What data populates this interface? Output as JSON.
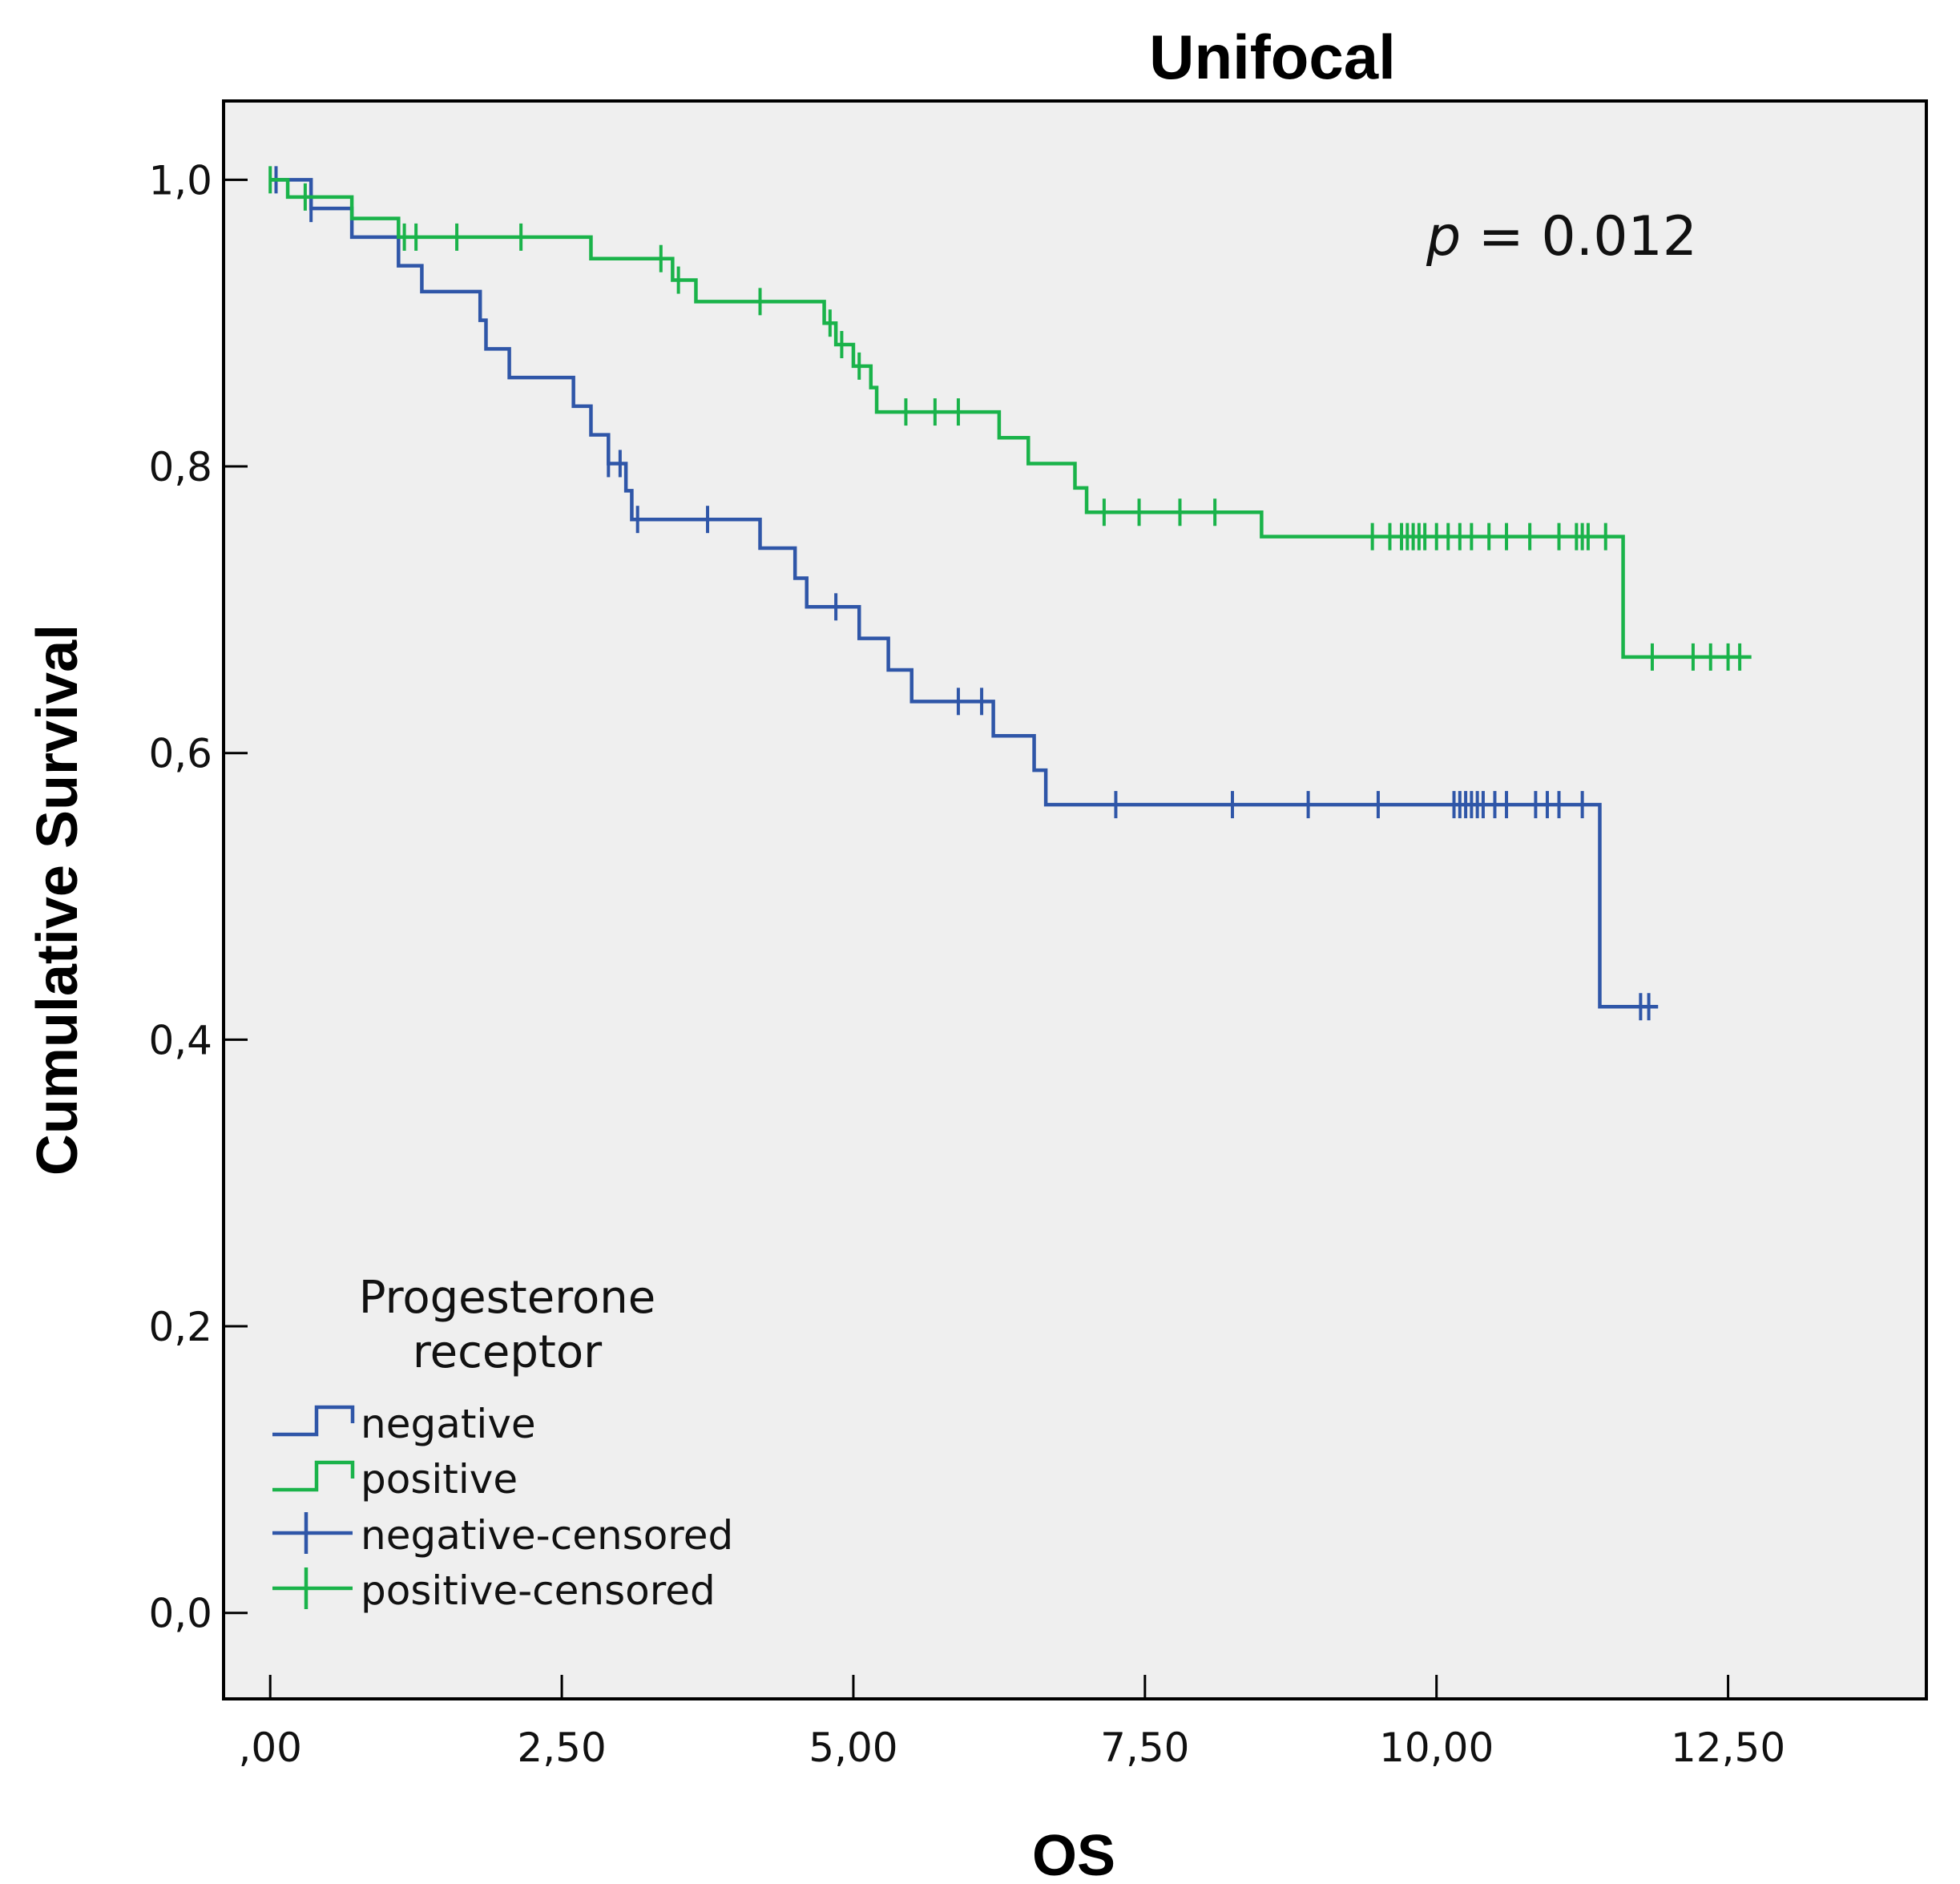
{
  "chart_data": {
    "type": "line",
    "subtype": "kaplan-meier",
    "title": "Unifocal",
    "xlabel": "OS",
    "ylabel": "Cumulative Survival",
    "xlim": [
      -0.4,
      14.2
    ],
    "ylim": [
      -0.06,
      1.055
    ],
    "x_ticks": [
      0,
      2.5,
      5,
      7.5,
      10,
      12.5
    ],
    "x_tick_labels": [
      ",00",
      "2,50",
      "5,00",
      "7,50",
      "10,00",
      "12,50"
    ],
    "y_ticks": [
      0,
      0.2,
      0.4,
      0.6,
      0.8,
      1.0
    ],
    "y_tick_labels": [
      "0,0",
      "0,2",
      "0,4",
      "0,6",
      "0,8",
      "1,0"
    ],
    "grid": false,
    "annotation": {
      "italic": "p",
      "text": " = 0.012"
    },
    "legend": {
      "title_line1": "Progesterone",
      "title_line2": "receptor",
      "placement": "bottom-left",
      "entries": [
        {
          "label": "negative",
          "kind": "line",
          "color": "#2f56a8"
        },
        {
          "label": "positive",
          "kind": "line",
          "color": "#1ab34a"
        },
        {
          "label": "negative-censored",
          "kind": "censor",
          "color": "#2f56a8"
        },
        {
          "label": "positive-censored",
          "kind": "censor",
          "color": "#1ab34a"
        }
      ]
    },
    "series": [
      {
        "name": "negative",
        "color": "#2f56a8",
        "steps": [
          [
            0,
            1.0
          ],
          [
            0.35,
            0.98
          ],
          [
            0.7,
            0.96
          ],
          [
            1.1,
            0.94
          ],
          [
            1.3,
            0.922
          ],
          [
            1.8,
            0.902
          ],
          [
            1.85,
            0.882
          ],
          [
            2.05,
            0.862
          ],
          [
            2.6,
            0.842
          ],
          [
            2.75,
            0.822
          ],
          [
            2.9,
            0.802
          ],
          [
            3.05,
            0.783
          ],
          [
            3.1,
            0.763
          ],
          [
            4.2,
            0.743
          ],
          [
            4.5,
            0.722
          ],
          [
            4.6,
            0.702
          ],
          [
            5.05,
            0.68
          ],
          [
            5.3,
            0.658
          ],
          [
            5.5,
            0.636
          ],
          [
            6.2,
            0.612
          ],
          [
            6.55,
            0.588
          ],
          [
            6.65,
            0.564
          ],
          [
            11.4,
            0.423
          ]
        ],
        "end_x": 11.9,
        "censored": [
          [
            0.05,
            1.0
          ],
          [
            0.35,
            0.98
          ],
          [
            2.9,
            0.802
          ],
          [
            3.0,
            0.802
          ],
          [
            3.15,
            0.763
          ],
          [
            3.75,
            0.763
          ],
          [
            4.85,
            0.702
          ],
          [
            5.9,
            0.636
          ],
          [
            6.1,
            0.636
          ],
          [
            7.25,
            0.564
          ],
          [
            8.25,
            0.564
          ],
          [
            8.9,
            0.564
          ],
          [
            9.5,
            0.564
          ],
          [
            10.15,
            0.564
          ],
          [
            10.2,
            0.564
          ],
          [
            10.25,
            0.564
          ],
          [
            10.3,
            0.564
          ],
          [
            10.35,
            0.564
          ],
          [
            10.4,
            0.564
          ],
          [
            10.5,
            0.564
          ],
          [
            10.6,
            0.564
          ],
          [
            10.85,
            0.564
          ],
          [
            10.95,
            0.564
          ],
          [
            11.05,
            0.564
          ],
          [
            11.25,
            0.564
          ],
          [
            11.75,
            0.423
          ],
          [
            11.82,
            0.423
          ]
        ]
      },
      {
        "name": "positive",
        "color": "#1ab34a",
        "steps": [
          [
            0,
            1.0
          ],
          [
            0.15,
            0.988
          ],
          [
            0.7,
            0.973
          ],
          [
            1.1,
            0.96
          ],
          [
            2.75,
            0.945
          ],
          [
            3.45,
            0.93
          ],
          [
            3.65,
            0.915
          ],
          [
            4.75,
            0.9
          ],
          [
            4.85,
            0.885
          ],
          [
            5.0,
            0.87
          ],
          [
            5.15,
            0.855
          ],
          [
            5.2,
            0.838
          ],
          [
            6.25,
            0.82
          ],
          [
            6.5,
            0.802
          ],
          [
            6.9,
            0.785
          ],
          [
            7.0,
            0.768
          ],
          [
            8.5,
            0.751
          ],
          [
            11.6,
            0.667
          ]
        ],
        "end_x": 12.7,
        "censored": [
          [
            0.0,
            1.0
          ],
          [
            0.3,
            0.988
          ],
          [
            1.15,
            0.96
          ],
          [
            1.25,
            0.96
          ],
          [
            1.6,
            0.96
          ],
          [
            2.15,
            0.96
          ],
          [
            3.35,
            0.945
          ],
          [
            3.5,
            0.93
          ],
          [
            4.2,
            0.915
          ],
          [
            4.8,
            0.9
          ],
          [
            4.9,
            0.885
          ],
          [
            5.05,
            0.87
          ],
          [
            5.45,
            0.838
          ],
          [
            5.7,
            0.838
          ],
          [
            5.9,
            0.838
          ],
          [
            7.15,
            0.768
          ],
          [
            7.45,
            0.768
          ],
          [
            7.8,
            0.768
          ],
          [
            8.1,
            0.768
          ],
          [
            9.45,
            0.751
          ],
          [
            9.6,
            0.751
          ],
          [
            9.7,
            0.751
          ],
          [
            9.75,
            0.751
          ],
          [
            9.8,
            0.751
          ],
          [
            9.85,
            0.751
          ],
          [
            9.9,
            0.751
          ],
          [
            10.0,
            0.751
          ],
          [
            10.1,
            0.751
          ],
          [
            10.2,
            0.751
          ],
          [
            10.3,
            0.751
          ],
          [
            10.45,
            0.751
          ],
          [
            10.6,
            0.751
          ],
          [
            10.8,
            0.751
          ],
          [
            11.05,
            0.751
          ],
          [
            11.2,
            0.751
          ],
          [
            11.25,
            0.751
          ],
          [
            11.3,
            0.751
          ],
          [
            11.45,
            0.751
          ],
          [
            11.85,
            0.667
          ],
          [
            12.2,
            0.667
          ],
          [
            12.35,
            0.667
          ],
          [
            12.5,
            0.667
          ],
          [
            12.6,
            0.667
          ]
        ]
      }
    ]
  }
}
